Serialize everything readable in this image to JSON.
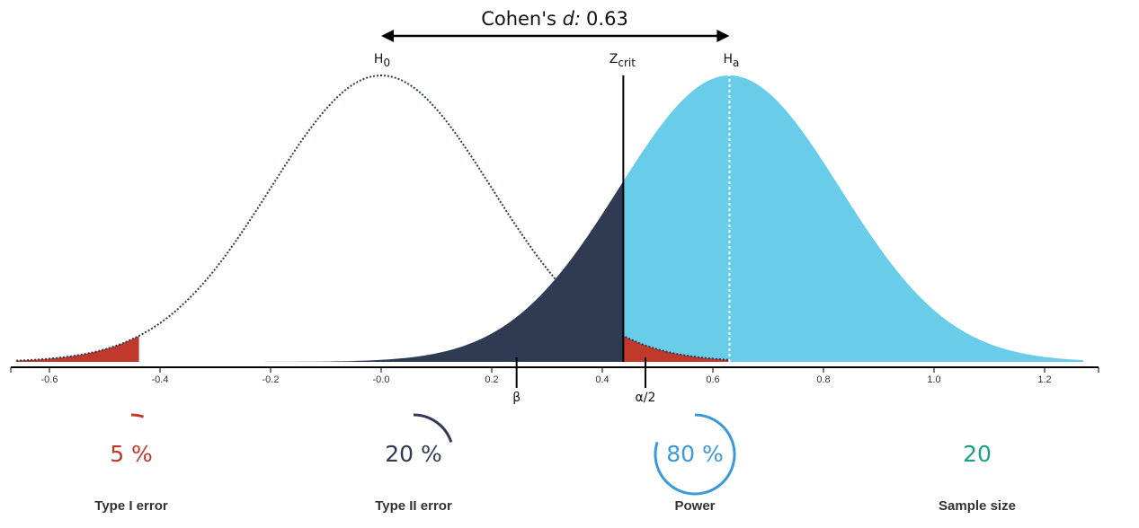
{
  "chart_data": {
    "type": "area",
    "title_prefix": "Cohen's ",
    "title_symbol": "d:",
    "title_value": "0.63",
    "effect_size": 0.63,
    "sd": 0.2,
    "z_crit": 0.438,
    "beta_marker": 0.245,
    "alpha_marker": 0.478,
    "x_range": [
      -0.67,
      1.3
    ],
    "x_ticks": [
      "-0.6",
      "-0.4",
      "-0.2",
      "-0.0",
      "0.2",
      "0.4",
      "0.6",
      "0.8",
      "1.0",
      "1.2"
    ],
    "x_tick_values": [
      -0.6,
      -0.4,
      -0.2,
      0.0,
      0.2,
      0.4,
      0.6,
      0.8,
      1.0,
      1.2
    ],
    "labels": {
      "h0_main": "H",
      "h0_sub": "0",
      "ha_main": "H",
      "ha_sub": "a",
      "zcrit_main": "Z",
      "zcrit_sub": "crit",
      "beta": "β",
      "alpha": "α/2"
    },
    "colors": {
      "type1": "#c0392b",
      "type2": "#2f3a53",
      "power": "#69cde9",
      "sample": "#1aa08a",
      "power_ring": "#3a9ad9"
    }
  },
  "stats": [
    {
      "key": "type1",
      "value": "5 %",
      "fraction": 0.05,
      "label": "Type I error"
    },
    {
      "key": "type2",
      "value": "20 %",
      "fraction": 0.2,
      "label": "Type II error"
    },
    {
      "key": "power",
      "value": "80 %",
      "fraction": 0.8,
      "label": "Power"
    },
    {
      "key": "sample",
      "value": "20",
      "label": "Sample size"
    }
  ]
}
